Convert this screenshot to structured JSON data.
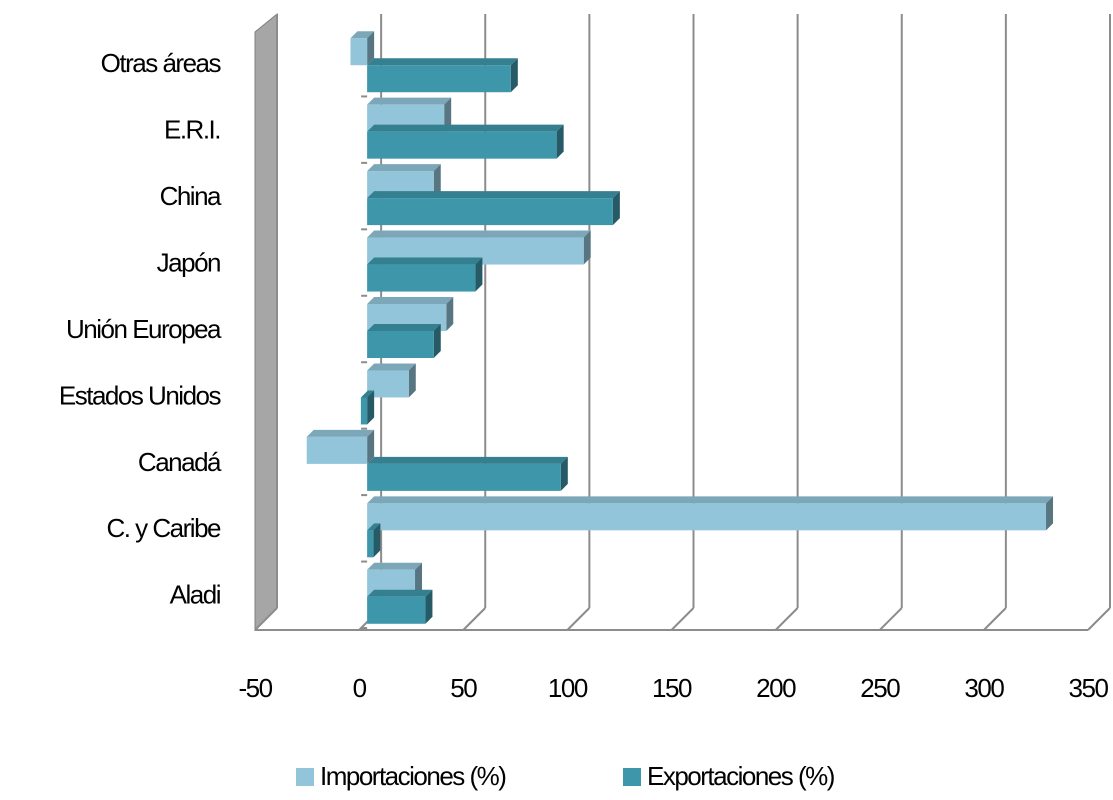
{
  "chart_data": {
    "type": "bar",
    "orientation": "horizontal",
    "categories": [
      "Aladi",
      "C. y Caribe",
      "Canadá",
      "Estados Unidos",
      "Unión Europea",
      "Japón",
      "China",
      "E.R.I.",
      "Otras áreas"
    ],
    "series": [
      {
        "name": "Importaciones (%)",
        "color": "#92c5d9",
        "values": [
          23,
          326,
          -29,
          20,
          38,
          104,
          32,
          37,
          -8
        ]
      },
      {
        "name": "Exportaciones (%)",
        "color": "#3d96aa",
        "values": [
          28,
          3,
          93,
          -3,
          32,
          52,
          118,
          91,
          69
        ]
      }
    ],
    "xlim": [
      -50,
      350
    ],
    "xticks": [
      -50,
      0,
      50,
      100,
      150,
      200,
      250,
      300,
      350
    ],
    "grid": true,
    "legend": "bottom"
  }
}
